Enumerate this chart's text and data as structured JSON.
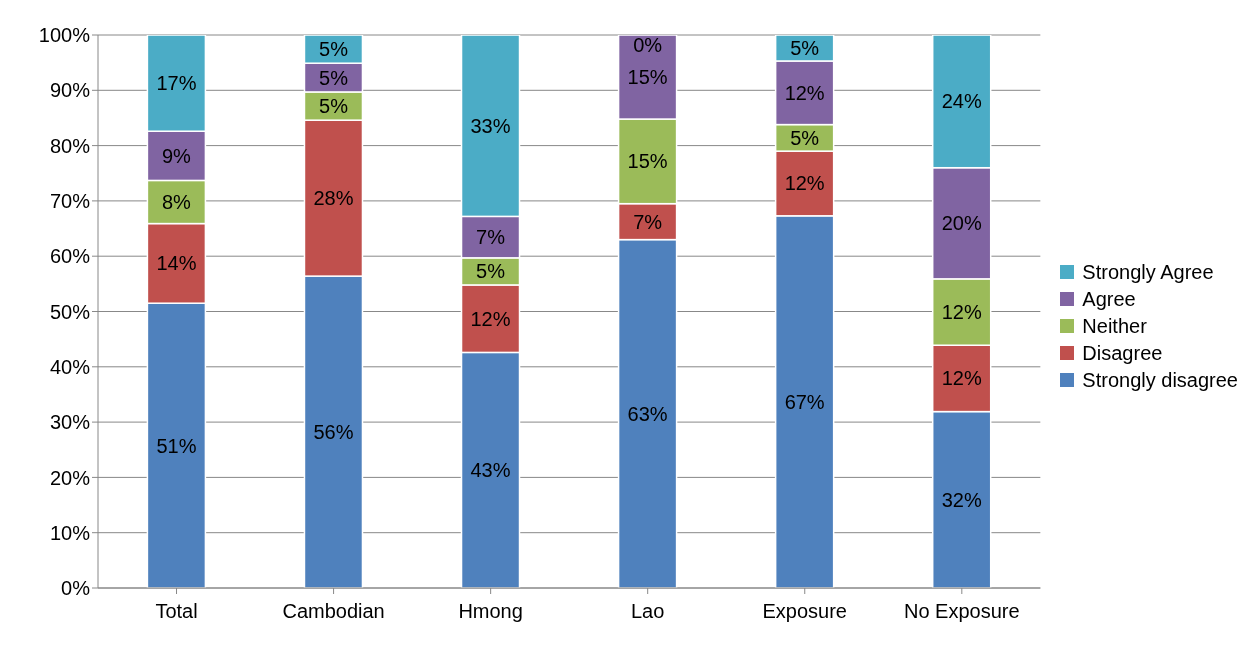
{
  "chart_data": {
    "type": "bar",
    "stacked": true,
    "categories": [
      "Total",
      "Cambodian",
      "Hmong",
      "Lao",
      "Exposure",
      "No Exposure"
    ],
    "ylim": [
      0,
      100
    ],
    "yticks": [
      {
        "value": 0,
        "label": "0%"
      },
      {
        "value": 10,
        "label": "10%"
      },
      {
        "value": 20,
        "label": "20%"
      },
      {
        "value": 30,
        "label": "30%"
      },
      {
        "value": 40,
        "label": "40%"
      },
      {
        "value": 50,
        "label": "50%"
      },
      {
        "value": 60,
        "label": "60%"
      },
      {
        "value": 70,
        "label": "70%"
      },
      {
        "value": 80,
        "label": "80%"
      },
      {
        "value": 90,
        "label": "90%"
      },
      {
        "value": 100,
        "label": "100%"
      }
    ],
    "grid": "y",
    "legend": "right",
    "series": [
      {
        "name": "Strongly disagree",
        "color": "#4f81bd",
        "values": [
          51.5,
          56.4,
          42.6,
          63.0,
          67.3,
          31.9
        ],
        "value_labels": [
          "51%",
          "56%",
          "43%",
          "63%",
          "67%",
          "32%"
        ]
      },
      {
        "name": "Disagree",
        "color": "#c0504d",
        "values": [
          14.4,
          28.2,
          12.2,
          6.5,
          11.7,
          12.0
        ],
        "value_labels": [
          "14%",
          "28%",
          "12%",
          "7%",
          "12%",
          "12%"
        ]
      },
      {
        "name": "Neither",
        "color": "#9bbb59",
        "values": [
          7.8,
          5.1,
          4.9,
          15.3,
          4.8,
          12.0
        ],
        "value_labels": [
          "8%",
          "5%",
          "5%",
          "15%",
          "5%",
          "12%"
        ]
      },
      {
        "name": "Agree",
        "color": "#8064a2",
        "values": [
          8.9,
          5.2,
          7.5,
          15.2,
          11.5,
          20.1
        ],
        "value_labels": [
          "9%",
          "5%",
          "7%",
          "15%",
          "12%",
          "20%"
        ]
      },
      {
        "name": "Strongly Agree",
        "color": "#4bacc6",
        "values": [
          17.4,
          5.1,
          32.8,
          0,
          4.7,
          24.0
        ],
        "value_labels": [
          "17%",
          "5%",
          "33%",
          "0%",
          "5%",
          "24%"
        ]
      }
    ]
  }
}
